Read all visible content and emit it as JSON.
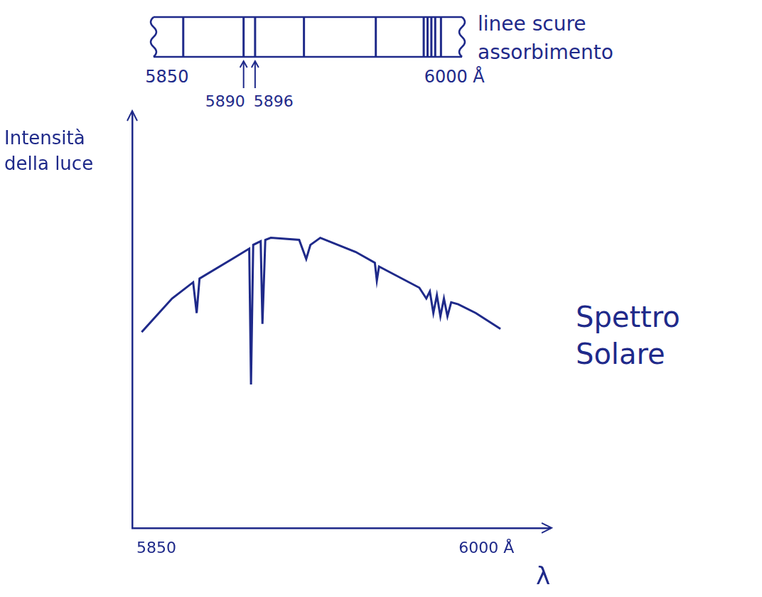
{
  "chart_data": {
    "type": "line",
    "title": "Spettro Solare",
    "ylabel": "Intensità della luce",
    "xlabel": "λ",
    "color": "#1f2a8a",
    "x": [
      5843.3,
      5857.1,
      5866.7,
      5868.3,
      5869.6,
      5886.0,
      5892.2,
      5893.0,
      5894.0,
      5897.4,
      5898.2,
      5899.5,
      5902.0,
      5914.9,
      5918.1,
      5920.0,
      5924.5,
      5940.6,
      5949.3,
      5950.2,
      5951.2,
      5969.5,
      5972.7,
      5974.3,
      5975.9,
      5977.5,
      5979.1,
      5980.7,
      5982.3,
      5984.0,
      5987.2,
      5995.2,
      6006.4
    ],
    "values": [
      47.1,
      55.2,
      59.1,
      51.7,
      60.0,
      65.2,
      67.2,
      34.5,
      68.1,
      69.0,
      49.1,
      69.3,
      69.8,
      69.3,
      64.7,
      68.1,
      69.8,
      66.4,
      63.8,
      59.5,
      62.9,
      57.8,
      55.2,
      56.9,
      51.7,
      56.0,
      50.9,
      55.2,
      50.9,
      54.3,
      53.8,
      51.7,
      47.9
    ],
    "xlim": [
      5839,
      6029
    ],
    "xticks": [
      {
        "value": 5850,
        "label": "5850"
      },
      {
        "value": 6000,
        "label": "6000 Å"
      }
    ],
    "ylim": [
      0,
      100
    ],
    "grid": false,
    "tick_labels": "x"
  },
  "spectrum_strip": {
    "note": "linee scure assorbimento",
    "lim": [
      5843,
      6004
    ],
    "lines": [
      5858.5,
      5890,
      5896,
      5921.5,
      5959,
      5984,
      5986,
      5988,
      5990,
      5993
    ],
    "labels": [
      {
        "value": 5850,
        "label": "5850"
      },
      {
        "value": 6000,
        "label": "6000 Å"
      }
    ],
    "arrows": [
      5890,
      5896
    ]
  }
}
